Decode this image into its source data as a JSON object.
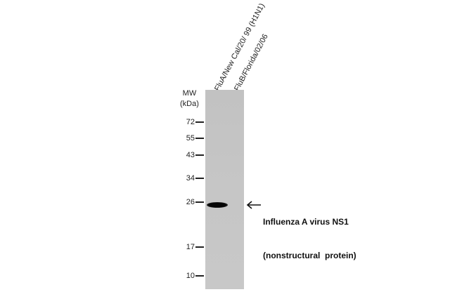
{
  "lanes": [
    {
      "label": "FluA/New Cal/20/ 99 (H1N1)"
    },
    {
      "label": "FluB/Florida/02/06"
    }
  ],
  "mw_header": {
    "line1": "MW",
    "line2": "(kDa)"
  },
  "markers": [
    "72",
    "55",
    "43",
    "34",
    "26",
    "17",
    "10"
  ],
  "annotation": {
    "line1": "Influenza A virus NS1",
    "line2": "(nonstructural  protein)"
  }
}
